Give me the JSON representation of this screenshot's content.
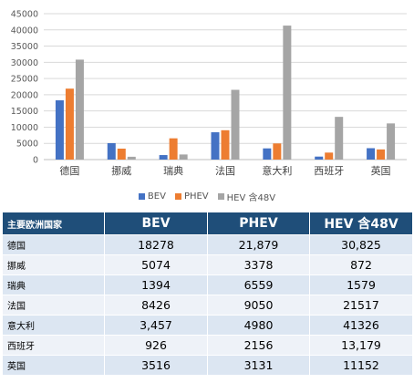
{
  "chart_data": {
    "type": "bar",
    "categories": [
      "德国",
      "挪威",
      "瑞典",
      "法国",
      "意大利",
      "西班牙",
      "英国"
    ],
    "series": [
      {
        "name": "BEV",
        "values": [
          18278,
          5074,
          1394,
          8426,
          3457,
          926,
          3516
        ]
      },
      {
        "name": "PHEV",
        "values": [
          21879,
          3378,
          6559,
          9050,
          4980,
          2156,
          3131
        ]
      },
      {
        "name": "HEV 含48V",
        "values": [
          30825,
          872,
          1579,
          21517,
          41326,
          13179,
          11152
        ]
      }
    ],
    "ylim": [
      0,
      45000
    ],
    "yticks": [
      "0",
      "5000",
      "10000",
      "15000",
      "20000",
      "25000",
      "30000",
      "35000",
      "40000",
      "45000"
    ],
    "grid": true,
    "legend_position": "bottom",
    "colors": [
      "#4472c4",
      "#ed7d31",
      "#a5a5a5"
    ]
  },
  "table": {
    "headers": [
      "主要欧洲国家",
      "BEV",
      "PHEV",
      "HEV 含48V"
    ],
    "rows": [
      {
        "country": "德国",
        "bev": "18278",
        "phev": "21,879",
        "hev": "30,825"
      },
      {
        "country": "挪威",
        "bev": "5074",
        "phev": "3378",
        "hev": "872"
      },
      {
        "country": "瑞典",
        "bev": "1394",
        "phev": "6559",
        "hev": "1579"
      },
      {
        "country": "法国",
        "bev": "8426",
        "phev": "9050",
        "hev": "21517"
      },
      {
        "country": "意大利",
        "bev": "3,457",
        "phev": "4980",
        "hev": "41326"
      },
      {
        "country": "西班牙",
        "bev": "926",
        "phev": "2156",
        "hev": "13,179"
      },
      {
        "country": "英国",
        "bev": "3516",
        "phev": "3131",
        "hev": "11152"
      }
    ],
    "header_color": "#1f4e79",
    "row_colors": [
      "#dce6f2",
      "#eef2f8"
    ]
  }
}
